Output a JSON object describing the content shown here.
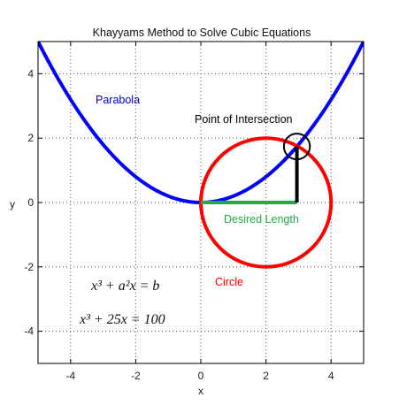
{
  "chart_data": {
    "type": "line",
    "title": "Khayyams Method to Solve Cubic Equations",
    "xlabel": "x",
    "ylabel": "y",
    "xlim": [
      -5,
      5
    ],
    "ylim": [
      -5,
      5
    ],
    "xticks": [
      -4,
      -2,
      0,
      2,
      4
    ],
    "yticks": [
      -4,
      -2,
      0,
      2,
      4
    ],
    "grid": true,
    "a": 5,
    "b": 100,
    "series": [
      {
        "name": "Parabola",
        "equation": "y = x^2 / a",
        "color": "#0000ff",
        "x_range": [
          -5,
          5
        ]
      },
      {
        "name": "Circle",
        "center": [
          2,
          0
        ],
        "radius": 2,
        "color": "#ff0000"
      }
    ],
    "annotations": {
      "parabola_label": "Parabola",
      "circle_label": "Circle",
      "intersection_label": "Point of Intersection",
      "length_label": "Desired Length",
      "intersection_point": [
        2.95,
        1.74
      ],
      "marker_radius": 0.4,
      "desired_length": [
        0,
        2.95
      ],
      "equation1": "x³ + a²x = b",
      "equation2": "x³ + 25x = 100"
    },
    "colors": {
      "parabola": "#0000ff",
      "circle": "#ff0000",
      "marker": "#000000",
      "length": "#22aa44",
      "length_text": "#22aa44",
      "parabola_text": "#0000cc",
      "circle_text": "#ff0000",
      "intersection_text": "#000000"
    }
  }
}
